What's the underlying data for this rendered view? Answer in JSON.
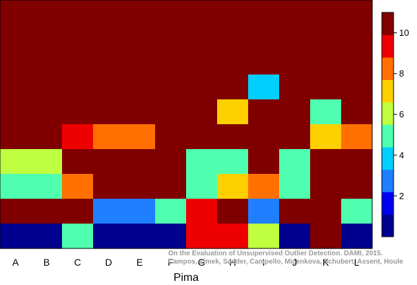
{
  "chart_data": {
    "type": "heatmap",
    "xlabel": "Pima",
    "ylabel": "",
    "title": "",
    "columns": [
      "A",
      "B",
      "C",
      "D",
      "E",
      "F",
      "G",
      "H",
      "I",
      "J",
      "K",
      "L"
    ],
    "cells_top_to_bottom": [
      [
        11,
        11,
        11,
        11,
        11,
        11,
        11,
        11,
        11,
        11,
        11,
        11
      ],
      [
        11,
        11,
        11,
        11,
        11,
        11,
        11,
        11,
        11,
        11,
        11,
        11
      ],
      [
        11,
        11,
        11,
        11,
        11,
        11,
        11,
        11,
        11,
        11,
        11,
        11
      ],
      [
        11,
        11,
        11,
        11,
        11,
        11,
        11,
        11,
        4,
        11,
        11,
        11
      ],
      [
        11,
        11,
        11,
        11,
        11,
        11,
        11,
        7,
        11,
        11,
        5,
        11
      ],
      [
        11,
        11,
        9,
        8,
        8,
        11,
        11,
        11,
        11,
        11,
        7,
        8
      ],
      [
        6,
        6,
        11,
        11,
        11,
        11,
        5,
        5,
        11,
        5,
        11,
        11
      ],
      [
        5,
        5,
        8,
        11,
        11,
        11,
        5,
        7,
        8,
        5,
        11,
        11
      ],
      [
        11,
        11,
        11,
        3,
        3,
        5,
        9,
        11,
        3,
        11,
        11,
        5
      ],
      [
        1,
        1,
        5,
        1,
        1,
        1,
        9,
        9,
        6,
        1,
        11,
        1
      ]
    ],
    "colorbar": {
      "ticks": [
        2,
        4,
        6,
        8,
        10
      ],
      "range": [
        0,
        11
      ],
      "colors": [
        "#00008F",
        "#0000EF",
        "#1F7FFF",
        "#00CFFF",
        "#4FFFAF",
        "#BFFF3F",
        "#FFD000",
        "#FF7000",
        "#EF0000",
        "#800000"
      ]
    },
    "grid": false
  },
  "watermark": {
    "line1": "On the Evaluation of Unsupervised Outlier Detection. DAMI, 2015.",
    "line2": "Campos, Zimek, Sander, Campello, Micenkova, Schubert, Assent, Houle"
  }
}
